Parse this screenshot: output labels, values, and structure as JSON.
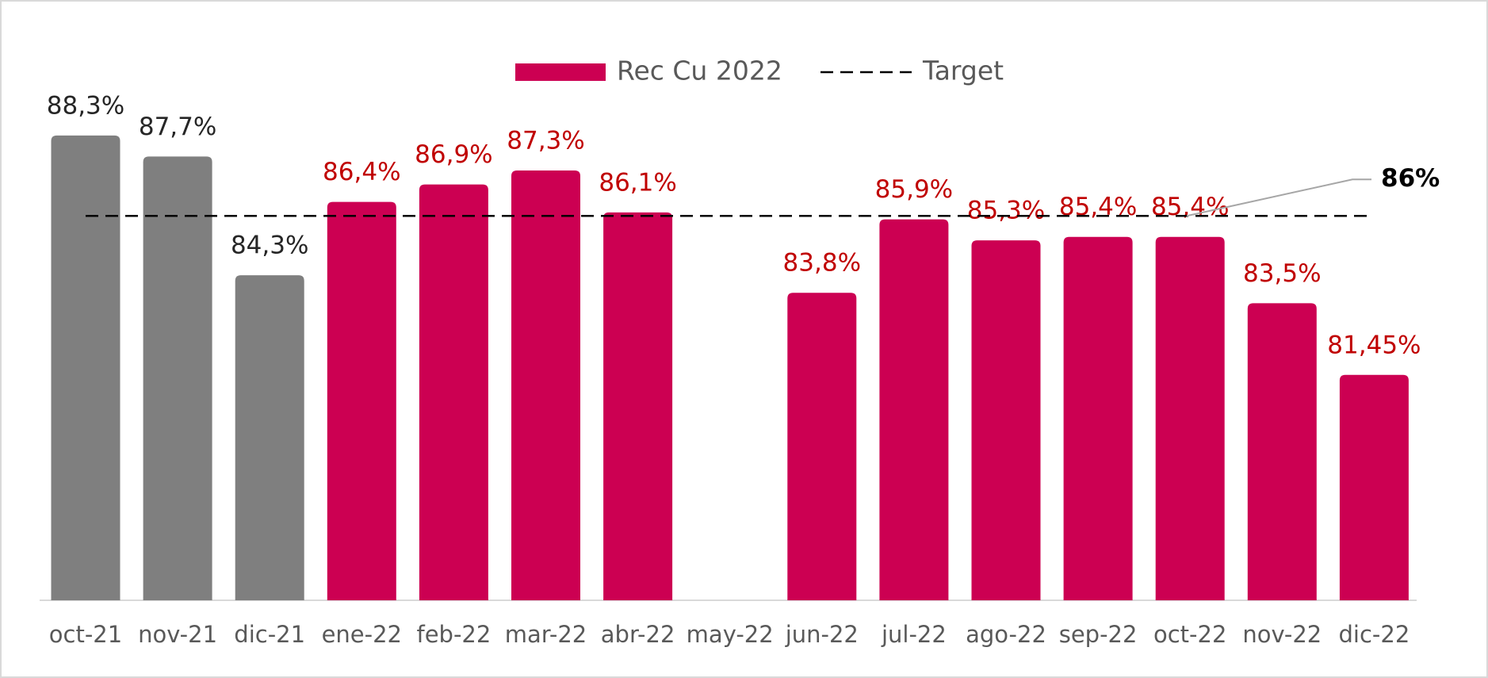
{
  "chart_data": {
    "type": "bar",
    "categories": [
      "oct-21",
      "nov-21",
      "dic-21",
      "ene-22",
      "feb-22",
      "mar-22",
      "abr-22",
      "may-22",
      "jun-22",
      "jul-22",
      "ago-22",
      "sep-22",
      "oct-22",
      "nov-22",
      "dic-22"
    ],
    "series": [
      {
        "name": "Rec Cu 2022",
        "color": "#cc0052",
        "values": [
          88.3,
          87.7,
          84.3,
          86.4,
          86.9,
          87.3,
          86.1,
          null,
          83.8,
          85.9,
          85.3,
          85.4,
          85.4,
          83.5,
          81.45
        ],
        "value_labels": [
          "88,3%",
          "87,7%",
          "84,3%",
          "86,4%",
          "86,9%",
          "87,3%",
          "86,1%",
          null,
          "83,8%",
          "85,9%",
          "85,3%",
          "85,4%",
          "85,4%",
          "83,5%",
          "81,45%"
        ],
        "colors": [
          "#7f7f7f",
          "#7f7f7f",
          "#7f7f7f",
          "#cc0052",
          "#cc0052",
          "#cc0052",
          "#cc0052",
          "#cc0052",
          "#cc0052",
          "#cc0052",
          "#cc0052",
          "#cc0052",
          "#cc0052",
          "#cc0052",
          "#cc0052"
        ],
        "label_colors": [
          "#262626",
          "#262626",
          "#262626",
          "#c00000",
          "#c00000",
          "#c00000",
          "#c00000",
          "#c00000",
          "#c00000",
          "#c00000",
          "#c00000",
          "#c00000",
          "#c00000",
          "#c00000",
          "#c00000"
        ]
      }
    ],
    "target": {
      "name": "Target",
      "value": 86,
      "label": "86%",
      "color": "#000000"
    },
    "ylim": [
      75,
      90
    ]
  }
}
